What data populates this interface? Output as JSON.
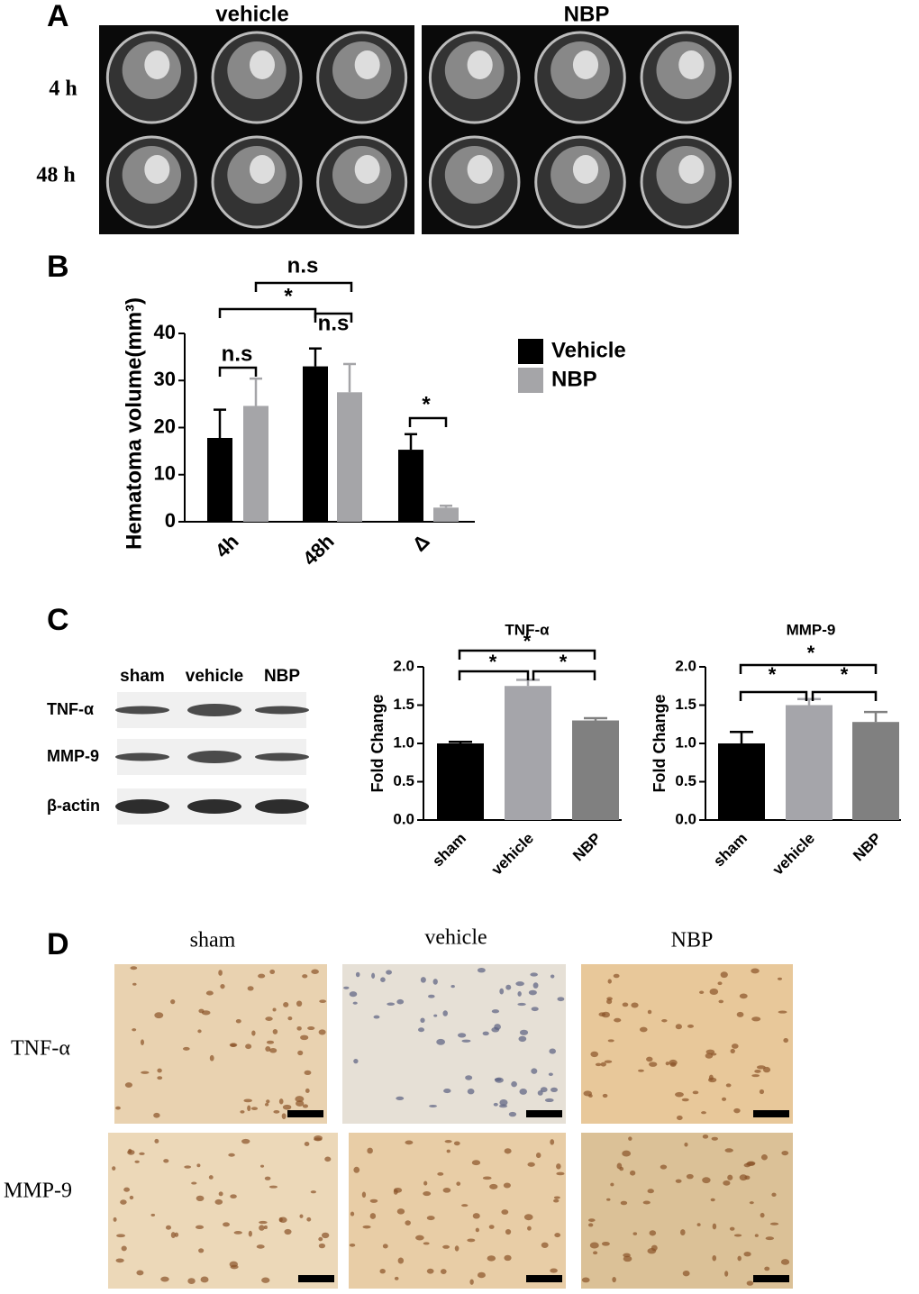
{
  "panel_a": {
    "label": "A",
    "columns": [
      "vehicle",
      "NBP"
    ],
    "rows": [
      "4 h",
      "48 h"
    ]
  },
  "panel_b": {
    "label": "B"
  },
  "panel_c": {
    "label": "C",
    "blot_columns": [
      "sham",
      "vehicle",
      "NBP"
    ],
    "blot_rows": [
      "TNF-α",
      "MMP-9",
      "β-actin"
    ]
  },
  "panel_d": {
    "label": "D",
    "columns": [
      "sham",
      "vehicle",
      "NBP"
    ],
    "rows": [
      "TNF-α",
      "MMP-9"
    ]
  },
  "chart_data": [
    {
      "type": "bar",
      "y_label": "Hematoma volume(mm³)",
      "categories": [
        "4h",
        "48h",
        "Δ"
      ],
      "series": [
        {
          "name": "Vehicle",
          "color": "#000000",
          "values": [
            17.8,
            33,
            15.3
          ],
          "errors": [
            6,
            3.8,
            3.3
          ]
        },
        {
          "name": "NBP",
          "color": "#a5a5a8",
          "values": [
            24.6,
            27.5,
            3
          ],
          "errors": [
            5.8,
            6,
            0.4
          ]
        }
      ],
      "ylim": [
        0,
        40
      ],
      "yticks": [
        0,
        10,
        20,
        30,
        40
      ],
      "annotations": [
        "n.s",
        "n.s",
        "*",
        "n.s",
        "*"
      ]
    },
    {
      "type": "bar",
      "title": "TNF-α",
      "y_label": "Fold Change",
      "categories": [
        "sham",
        "vehicle",
        "NBP"
      ],
      "values": [
        1.0,
        1.75,
        1.3
      ],
      "errors": [
        0.02,
        0.08,
        0.03
      ],
      "colors": [
        "#000000",
        "#a5a5aa",
        "#808080"
      ],
      "ylim": [
        0,
        2
      ],
      "yticks": [
        {
          "value": 0,
          "label": "0.0"
        },
        {
          "value": 0.5,
          "label": "0.5"
        },
        {
          "value": 1,
          "label": "1.0"
        },
        {
          "value": 1.5,
          "label": "1.5"
        },
        {
          "value": 2,
          "label": "2.0"
        }
      ],
      "annotations": [
        "*",
        "*",
        "*"
      ]
    },
    {
      "type": "bar",
      "title": "MMP-9",
      "y_label": "Fold Change",
      "categories": [
        "sham",
        "vehicle",
        "NBP"
      ],
      "values": [
        1.0,
        1.5,
        1.28
      ],
      "errors": [
        0.15,
        0.08,
        0.13
      ],
      "colors": [
        "#000000",
        "#a5a5aa",
        "#808080"
      ],
      "ylim": [
        0,
        2
      ],
      "yticks": [
        {
          "value": 0,
          "label": "0.0"
        },
        {
          "value": 0.5,
          "label": "0.5"
        },
        {
          "value": 1,
          "label": "1.0"
        },
        {
          "value": 1.5,
          "label": "1.5"
        },
        {
          "value": 2,
          "label": "2.0"
        }
      ],
      "annotations": [
        "*",
        "*",
        "*"
      ]
    }
  ]
}
